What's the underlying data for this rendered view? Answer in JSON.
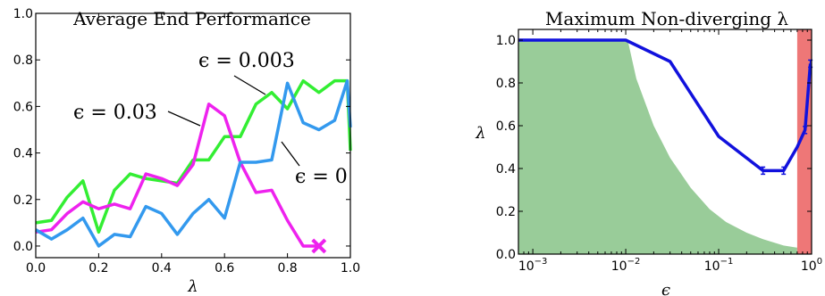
{
  "chart_data": [
    {
      "type": "line",
      "title": "Average End Performance",
      "xlabel": "λ",
      "ylabel": "",
      "xlim": [
        0,
        1
      ],
      "ylim": [
        -0.05,
        1.0
      ],
      "xticks": [
        0.0,
        0.2,
        0.4,
        0.6,
        0.8,
        1.0
      ],
      "xtick_labels": [
        "0.0",
        "0.2",
        "0.4",
        "0.6",
        "0.8",
        "1.0"
      ],
      "yticks": [
        0.0,
        0.2,
        0.4,
        0.6,
        0.8,
        1.0
      ],
      "ytick_labels": [
        "0.0",
        "0.2",
        "0.4",
        "0.6",
        "0.8",
        "1.0"
      ],
      "x": [
        0,
        0.05,
        0.1,
        0.15,
        0.2,
        0.25,
        0.3,
        0.35,
        0.4,
        0.45,
        0.5,
        0.55,
        0.6,
        0.65,
        0.7,
        0.75,
        0.8,
        0.85,
        0.9,
        0.95,
        0.99,
        1.0
      ],
      "series": [
        {
          "name": "ϵ = 0.003",
          "color": "#33ee33",
          "values": [
            0.1,
            0.11,
            0.21,
            0.28,
            0.06,
            0.24,
            0.31,
            0.29,
            0.28,
            0.27,
            0.37,
            0.37,
            0.47,
            0.47,
            0.61,
            0.66,
            0.59,
            0.71,
            0.66,
            0.71,
            0.71,
            0.41
          ]
        },
        {
          "name": "ϵ = 0.03",
          "color": "#ee22ee",
          "x": [
            0,
            0.05,
            0.1,
            0.15,
            0.2,
            0.25,
            0.3,
            0.35,
            0.4,
            0.45,
            0.5,
            0.55,
            0.6,
            0.65,
            0.7,
            0.75,
            0.8,
            0.85,
            0.9
          ],
          "values": [
            0.06,
            0.07,
            0.14,
            0.19,
            0.16,
            0.18,
            0.16,
            0.31,
            0.29,
            0.26,
            0.35,
            0.61,
            0.56,
            0.36,
            0.23,
            0.24,
            0.11,
            0.0,
            0.0
          ],
          "end_marker": {
            "x": 0.9,
            "y": 0.0,
            "symbol": "x"
          }
        },
        {
          "name": "ϵ = 0",
          "color": "#3399ee",
          "values": [
            0.07,
            0.03,
            0.07,
            0.12,
            0.0,
            0.05,
            0.04,
            0.17,
            0.14,
            0.05,
            0.14,
            0.2,
            0.12,
            0.36,
            0.36,
            0.37,
            0.7,
            0.53,
            0.5,
            0.54,
            0.71,
            0.51
          ]
        }
      ],
      "annotations": [
        {
          "text": "ϵ = 0.003",
          "series": "ϵ = 0.003",
          "x": 0.72,
          "y": 0.67
        },
        {
          "text": "ϵ = 0.03",
          "series": "ϵ = 0.03",
          "x": 0.48,
          "y": 0.55
        },
        {
          "text": "ϵ = 0",
          "series": "ϵ = 0",
          "x": 0.78,
          "y": 0.45
        }
      ]
    },
    {
      "type": "line",
      "title": "Maximum Non-diverging λ",
      "xlabel": "ϵ",
      "ylabel": "λ",
      "xscale": "log",
      "xlim": [
        0.0007,
        1.0
      ],
      "ylim": [
        0.0,
        1.05
      ],
      "xticks": [
        0.001,
        0.01,
        0.1,
        1.0
      ],
      "xtick_labels": [
        {
          "base": "10",
          "exp": "−3"
        },
        {
          "base": "10",
          "exp": "−2"
        },
        {
          "base": "10",
          "exp": "−1"
        },
        {
          "base": "10",
          "exp": "0"
        }
      ],
      "yticks": [
        0.0,
        0.2,
        0.4,
        0.6,
        0.8,
        1.0
      ],
      "ytick_labels": [
        "0.0",
        "0.2",
        "0.4",
        "0.6",
        "0.8",
        "1.0"
      ],
      "series": [
        {
          "color": "#1111dd",
          "x": [
            0.0007,
            0.001,
            0.003,
            0.01,
            0.03,
            0.1,
            0.3,
            0.5,
            0.7,
            0.85,
            0.97
          ],
          "values": [
            1.0,
            1.0,
            1.0,
            1.0,
            0.9,
            0.55,
            0.39,
            0.39,
            0.5,
            0.58,
            0.89
          ]
        }
      ],
      "shaded_region": {
        "color": "#99cc99",
        "x": [
          0.0007,
          0.0105,
          0.013,
          0.02,
          0.03,
          0.05,
          0.08,
          0.12,
          0.2,
          0.3,
          0.5,
          0.7
        ],
        "upper": [
          1.0,
          1.0,
          0.82,
          0.6,
          0.45,
          0.31,
          0.21,
          0.15,
          0.1,
          0.07,
          0.04,
          0.03
        ]
      },
      "vertical_band": {
        "color": "#ee7777",
        "x_start": 0.7,
        "x_end": 1.0
      }
    }
  ]
}
